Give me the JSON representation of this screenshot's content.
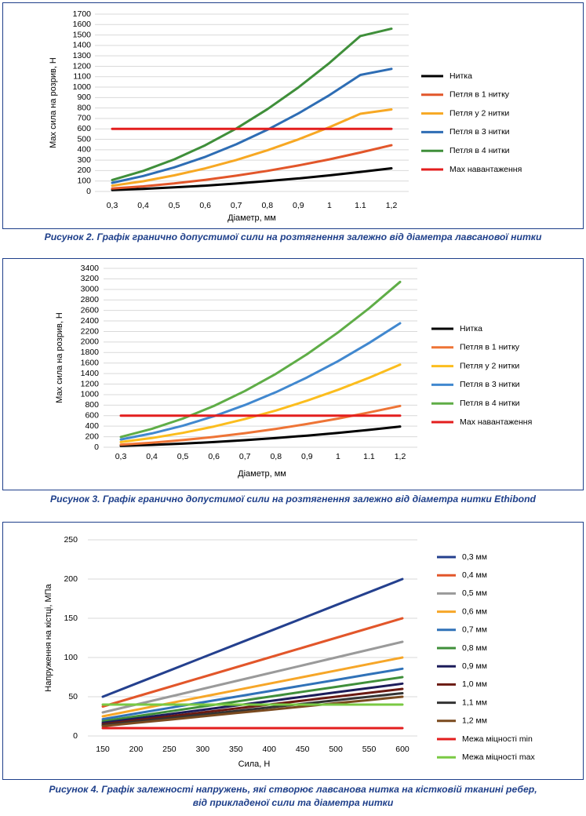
{
  "captions": [
    "Рисунок 2. Графік гранично допустимої сили на розтягнення залежно від діаметра лавсанової нитки",
    "Рисунок 3. Графік гранично допустимої сили на розтягнення залежно від діаметра нитки Ethibond",
    "Рисунок 4. Графік залежності напружень, які створює лавсанова нитка на кістковій тканині ребер,",
    "від прикладеної сили та діаметра нитки"
  ],
  "chart_data": [
    {
      "type": "line",
      "title": "",
      "xlabel": "Діаметр, мм",
      "ylabel": "Мах сила на розрив, Н",
      "categories": [
        "0,3",
        "0,4",
        "0,5",
        "0,6",
        "0,7",
        "0,8",
        "0,9",
        "1",
        "1.1",
        "1,2"
      ],
      "ylim": [
        0,
        1700
      ],
      "yticks": [
        0,
        100,
        200,
        300,
        400,
        500,
        600,
        700,
        800,
        900,
        1000,
        1100,
        1200,
        1300,
        1400,
        1500,
        1600,
        1700
      ],
      "grid": true,
      "legend": "right",
      "series": [
        {
          "name": "Нитка",
          "color": "#000000",
          "values": [
            14,
            25,
            39,
            56,
            76,
            99,
            125,
            154,
            187,
            222
          ]
        },
        {
          "name": "Петля в 1 нитку",
          "color": "#e2562a",
          "values": [
            28,
            49,
            77,
            111,
            151,
            197,
            249,
            308,
            373,
            443
          ]
        },
        {
          "name": "Петля у 2 нитки",
          "color": "#f7a823",
          "values": [
            55,
            98,
            154,
            221,
            302,
            394,
            499,
            616,
            745,
            786
          ]
        },
        {
          "name": "Петля в 3 нитки",
          "color": "#2e6db4",
          "values": [
            83,
            148,
            231,
            332,
            452,
            591,
            748,
            923,
            1117,
            1175
          ]
        },
        {
          "name": "Петля в 4 нитки",
          "color": "#3f8f3a",
          "values": [
            110,
            197,
            308,
            443,
            603,
            788,
            997,
            1231,
            1490,
            1560
          ]
        },
        {
          "name": "Мах навантаження",
          "color": "#e31e1e",
          "values": [
            600,
            600,
            600,
            600,
            600,
            600,
            600,
            600,
            600,
            600
          ]
        }
      ]
    },
    {
      "type": "line",
      "title": "",
      "xlabel": "Діаметр, мм",
      "ylabel": "Мах сила на розрив, Н",
      "categories": [
        "0,3",
        "0,4",
        "0,5",
        "0,6",
        "0,7",
        "0,8",
        "0,9",
        "1",
        "1.1",
        "1,2"
      ],
      "ylim": [
        0,
        3400
      ],
      "yticks": [
        0,
        200,
        400,
        600,
        800,
        1000,
        1200,
        1400,
        1600,
        1800,
        2000,
        2200,
        2400,
        2600,
        2800,
        3000,
        3200,
        3400
      ],
      "grid": true,
      "legend": "right",
      "series": [
        {
          "name": "Нитка",
          "color": "#000000",
          "values": [
            25,
            44,
            68,
            98,
            134,
            175,
            221,
            273,
            330,
            393
          ]
        },
        {
          "name": "Петля в 1 нитку",
          "color": "#ee7436",
          "values": [
            49,
            87,
            136,
            196,
            267,
            349,
            442,
            545,
            660,
            785
          ]
        },
        {
          "name": "Петля у 2 нитки",
          "color": "#fbbd1e",
          "values": [
            98,
            175,
            273,
            393,
            535,
            698,
            884,
            1091,
            1320,
            1571
          ]
        },
        {
          "name": "Петля в 3 нитки",
          "color": "#4188cf",
          "values": [
            147,
            262,
            409,
            589,
            802,
            1047,
            1325,
            1636,
            1980,
            2356
          ]
        },
        {
          "name": "Петля в 4 нитки",
          "color": "#5fad47",
          "values": [
            196,
            349,
            545,
            785,
            1069,
            1396,
            1767,
            2182,
            2640,
            3142
          ]
        },
        {
          "name": "Мах навантаження",
          "color": "#e31e1e",
          "values": [
            600,
            600,
            600,
            600,
            600,
            600,
            600,
            600,
            600,
            600
          ]
        }
      ]
    },
    {
      "type": "line",
      "title": "",
      "xlabel": "Сила, Н",
      "ylabel": "Напруження на кістці, МПа",
      "categories": [
        "150",
        "200",
        "250",
        "300",
        "350",
        "400",
        "450",
        "500",
        "550",
        "600"
      ],
      "ylim": [
        0,
        250
      ],
      "yticks": [
        0,
        50,
        100,
        150,
        200,
        250
      ],
      "grid": true,
      "legend": "right",
      "series": [
        {
          "name": "0,3 мм",
          "color": "#24408e",
          "values": [
            50,
            66.7,
            83.3,
            100,
            116.7,
            133.3,
            150,
            166.7,
            183.3,
            200
          ]
        },
        {
          "name": "0,4 мм",
          "color": "#e2562a",
          "values": [
            37.5,
            50,
            62.5,
            75,
            87.5,
            100,
            112.5,
            125,
            137.5,
            150
          ]
        },
        {
          "name": "0,5 мм",
          "color": "#9a9a9a",
          "values": [
            30,
            40,
            50,
            60,
            70,
            80,
            90,
            100,
            110,
            120
          ]
        },
        {
          "name": "0,6 мм",
          "color": "#f6a628",
          "values": [
            25,
            33.3,
            41.7,
            50,
            58.3,
            66.7,
            75,
            83.3,
            91.7,
            100
          ]
        },
        {
          "name": "0,7 мм",
          "color": "#3072b8",
          "values": [
            21.4,
            28.6,
            35.7,
            42.9,
            50,
            57.1,
            64.3,
            71.4,
            78.6,
            85.7
          ]
        },
        {
          "name": "0,8 мм",
          "color": "#3f8f3a",
          "values": [
            18.8,
            25,
            31.3,
            37.5,
            43.8,
            50,
            56.3,
            62.5,
            68.8,
            75
          ]
        },
        {
          "name": "0,9 мм",
          "color": "#1c1c5a",
          "values": [
            16.7,
            22.2,
            27.8,
            33.3,
            38.9,
            44.4,
            50,
            55.6,
            61.1,
            66.7
          ]
        },
        {
          "name": "1,0 мм",
          "color": "#6b1a12",
          "values": [
            15,
            20,
            25,
            30,
            35,
            40,
            45,
            50,
            55,
            60
          ]
        },
        {
          "name": "1,1 мм",
          "color": "#333333",
          "values": [
            13.6,
            18.2,
            22.7,
            27.3,
            31.8,
            36.4,
            40.9,
            45.5,
            50,
            54.5
          ]
        },
        {
          "name": "1,2 мм",
          "color": "#7a4a1f",
          "values": [
            12.5,
            16.7,
            20.8,
            25,
            29.2,
            33.3,
            37.5,
            41.7,
            45.8,
            50
          ]
        },
        {
          "name": "Межа міцності min",
          "color": "#e31e1e",
          "values": [
            10,
            10,
            10,
            10,
            10,
            10,
            10,
            10,
            10,
            10
          ]
        },
        {
          "name": "Межа міцності max",
          "color": "#7ac943",
          "values": [
            40,
            40,
            40,
            40,
            40,
            40,
            40,
            40,
            40,
            40
          ]
        }
      ]
    }
  ]
}
